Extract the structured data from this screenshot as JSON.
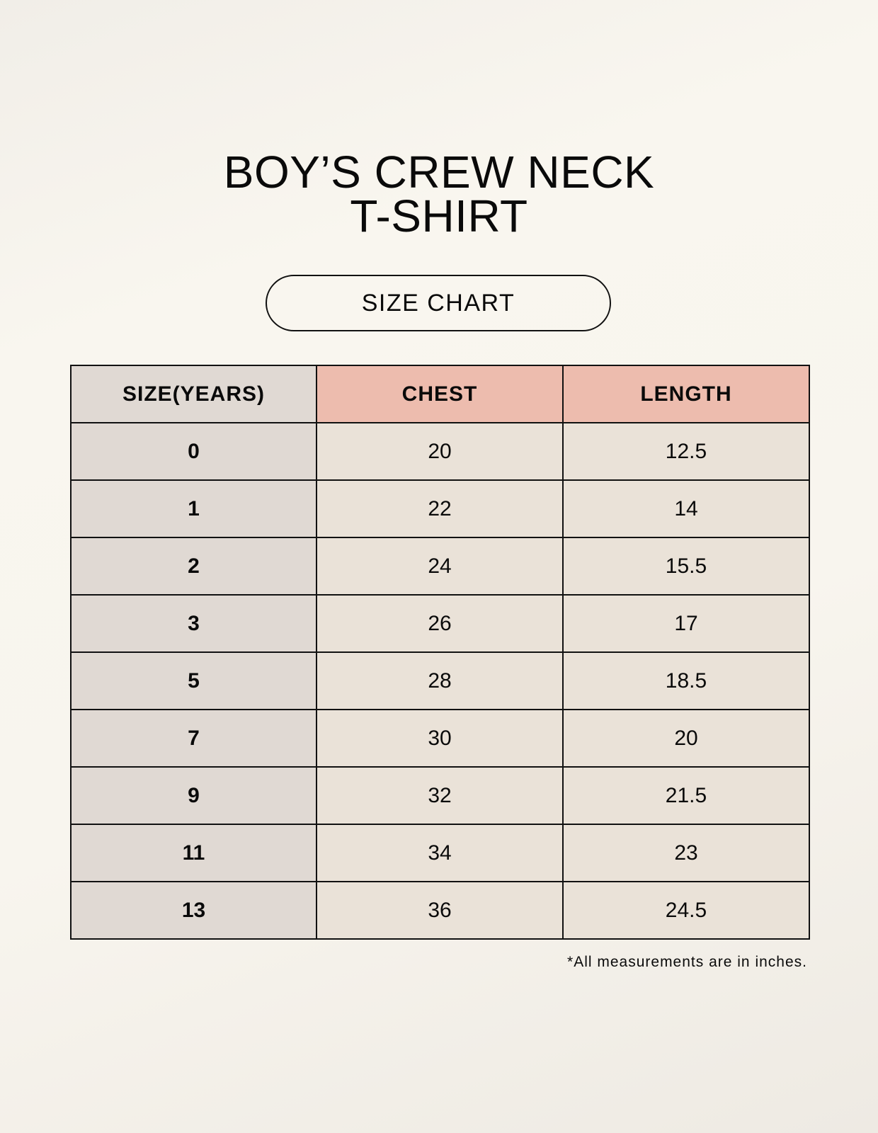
{
  "title": {
    "line1": "BOY’S CREW NECK",
    "line2": "T-SHIRT"
  },
  "badge": "SIZE CHART",
  "table": {
    "headers": [
      "SIZE(YEARS)",
      "CHEST",
      "LENGTH"
    ],
    "rows": [
      [
        "0",
        "20",
        "12.5"
      ],
      [
        "1",
        "22",
        "14"
      ],
      [
        "2",
        "24",
        "15.5"
      ],
      [
        "3",
        "26",
        "17"
      ],
      [
        "5",
        "28",
        "18.5"
      ],
      [
        "7",
        "30",
        "20"
      ],
      [
        "9",
        "32",
        "21.5"
      ],
      [
        "11",
        "34",
        "23"
      ],
      [
        "13",
        "36",
        "24.5"
      ]
    ]
  },
  "footnote": "*All measurements are in inches.",
  "colors": {
    "size_column": "#e0d9d3",
    "header_accent": "#edbcae",
    "cell": "#eae2d8"
  }
}
